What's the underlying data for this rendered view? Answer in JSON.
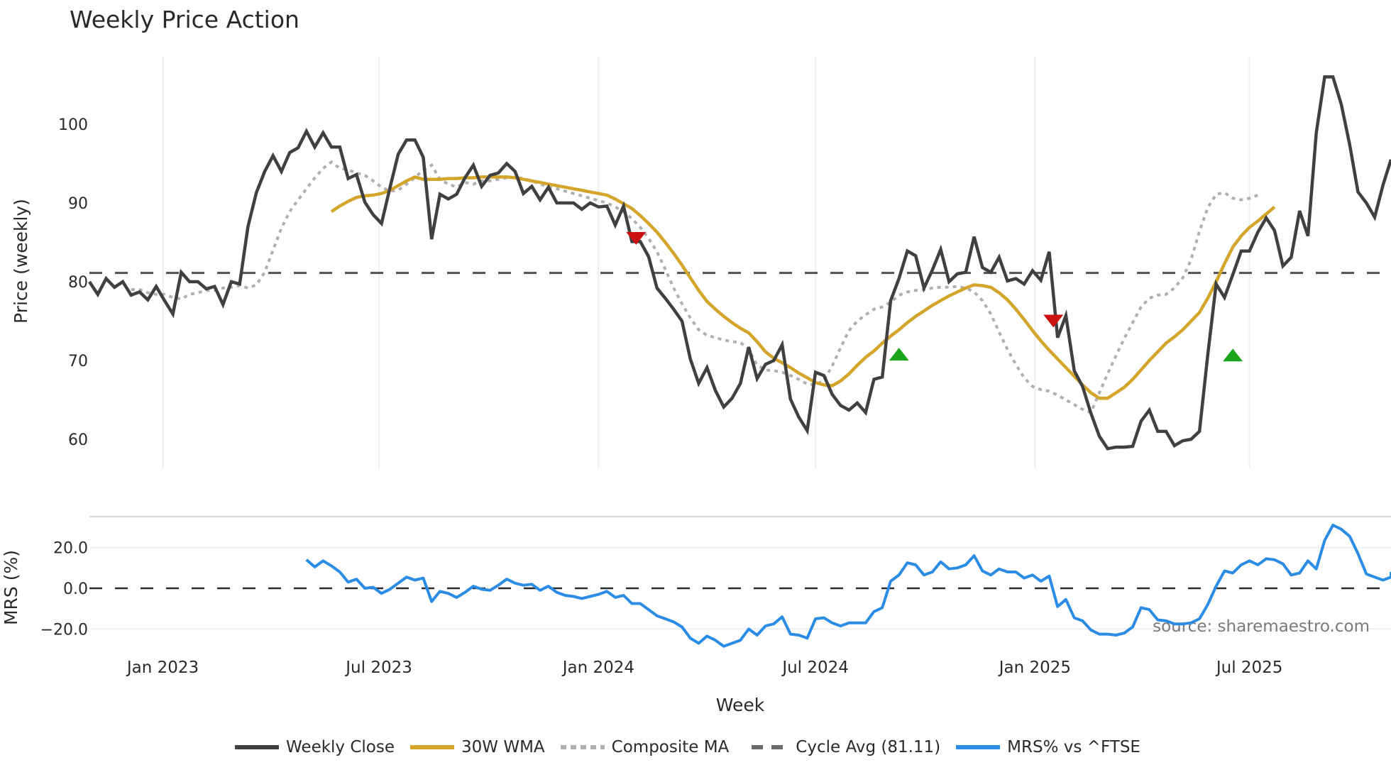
{
  "title": "Weekly Price Action",
  "colors": {
    "close": "#404040",
    "wma": "#d4a52b",
    "composite": "#b0b0b0",
    "cycle": "#505050",
    "mrs": "#2b8ce6",
    "sell": "#cc1111",
    "buy": "#1aa51a",
    "grid": "#eceff4"
  },
  "legend": [
    {
      "key": "close",
      "label": "Weekly Close",
      "style": "solid"
    },
    {
      "key": "wma",
      "label": "30W WMA",
      "style": "solid"
    },
    {
      "key": "composite",
      "label": "Composite MA",
      "style": "dotted"
    },
    {
      "key": "cycle",
      "label": "Cycle Avg (81.11)",
      "style": "dashed"
    },
    {
      "key": "mrs",
      "label": "MRS% vs ^FTSE",
      "style": "solid"
    }
  ],
  "source": "source: sharemaestro.com",
  "chart_data": [
    {
      "type": "line",
      "title": "Weekly Price Action",
      "xlabel": "Week",
      "ylabel": "Price (weekly)",
      "ylim": [
        55.5,
        110.5
      ],
      "yticks": [
        60,
        70,
        80,
        90,
        100
      ],
      "xticks": [
        "Jan 2023",
        "Jul 2023",
        "Jan 2024",
        "Jul 2024",
        "Jan 2025",
        "Jul 2025"
      ],
      "xtick_week_index": [
        8.8,
        34.7,
        61.0,
        87.0,
        113.3,
        139.0
      ],
      "cycle_avg": 81.11,
      "series": [
        {
          "name": "Weekly Close",
          "start_index": 0,
          "values": [
            80.0,
            78.4,
            80.4,
            79.3,
            80.0,
            78.3,
            78.7,
            77.7,
            79.4,
            77.6,
            75.9,
            81.2,
            80.0,
            80.0,
            79.1,
            79.4,
            77.1,
            80.0,
            79.7,
            87.0,
            91.3,
            94.0,
            96.0,
            94.0,
            96.4,
            97.0,
            99.1,
            97.1,
            98.9,
            97.1,
            97.1,
            93.1,
            93.6,
            90.1,
            88.5,
            87.4,
            91.9,
            96.2,
            98.0,
            98.0,
            95.8,
            85.4,
            91.1,
            90.5,
            91.1,
            93.2,
            94.8,
            92.1,
            93.5,
            93.8,
            95.0,
            94.0,
            91.2,
            92.1,
            90.4,
            92.0,
            90.0,
            90.0,
            90.0,
            89.2,
            90.0,
            89.5,
            89.6,
            87.2,
            89.6,
            85.1,
            85.1,
            83.2,
            79.2,
            77.9,
            76.5,
            75.0,
            70.2,
            67.1,
            69.1,
            66.2,
            64.1,
            65.2,
            67.1,
            71.7,
            67.7,
            69.5,
            70.0,
            72.0,
            65.1,
            62.8,
            61.1,
            68.5,
            68.1,
            65.7,
            64.3,
            63.7,
            64.6,
            63.4,
            67.6,
            67.9,
            77.6,
            80.4,
            83.9,
            83.3,
            79.2,
            81.5,
            84.1,
            80.0,
            81.0,
            81.2,
            85.7,
            81.8,
            81.2,
            83.1,
            80.1,
            80.4,
            79.7,
            81.4,
            80.2,
            83.8,
            72.9,
            75.7,
            68.7,
            66.7,
            63.3,
            60.4,
            58.8,
            59.0,
            59.0,
            59.1,
            62.3,
            63.7,
            61.0,
            61.0,
            59.2,
            59.8,
            60.0,
            61.0,
            70.7,
            79.7,
            78.0,
            80.9,
            83.9,
            83.9,
            86.3,
            88.1,
            86.5,
            82.0,
            83.1,
            89.0,
            85.8,
            98.9,
            106.0,
            106.0,
            102.5,
            97.4,
            91.4,
            90.0,
            88.2,
            92.3,
            95.5
          ]
        },
        {
          "name": "30W WMA",
          "start_index": 29,
          "values": [
            88.9,
            89.6,
            90.2,
            90.7,
            90.9,
            91.0,
            91.2,
            91.6,
            92.2,
            92.8,
            93.3,
            93.0,
            93.0,
            93.0,
            93.1,
            93.1,
            93.2,
            93.2,
            93.3,
            93.3,
            93.3,
            93.3,
            93.2,
            93.0,
            92.8,
            92.6,
            92.4,
            92.2,
            92.0,
            91.8,
            91.6,
            91.4,
            91.2,
            91.0,
            90.5,
            89.9,
            89.3,
            88.4,
            87.4,
            86.3,
            85.0,
            83.6,
            82.1,
            80.5,
            78.9,
            77.5,
            76.5,
            75.6,
            74.8,
            74.1,
            73.5,
            72.4,
            71.1,
            70.3,
            69.7,
            69.1,
            68.4,
            67.8,
            67.2,
            66.9,
            66.8,
            67.4,
            68.3,
            69.4,
            70.4,
            71.2,
            72.2,
            73.1,
            73.9,
            74.8,
            75.6,
            76.3,
            77.0,
            77.6,
            78.2,
            78.7,
            79.2,
            79.6,
            79.5,
            79.3,
            78.6,
            77.7,
            76.5,
            75.2,
            73.8,
            72.5,
            71.3,
            70.2,
            69.1,
            68.0,
            66.9,
            65.9,
            65.2,
            65.2,
            65.9,
            66.6,
            67.6,
            68.8,
            70.0,
            71.1,
            72.2,
            73.0,
            73.9,
            75.0,
            76.1,
            77.9,
            80.0,
            82.3,
            84.4,
            85.8,
            86.9,
            87.7,
            88.6,
            89.5
          ]
        },
        {
          "name": "Composite MA",
          "start_index": 5,
          "values": [
            79.0,
            79.0,
            78.6,
            78.4,
            78.4,
            78.0,
            77.8,
            78.4,
            78.6,
            78.9,
            78.9,
            79.2,
            79.3,
            79.5,
            79.2,
            79.6,
            81.2,
            84.0,
            86.8,
            88.9,
            90.4,
            91.8,
            93.2,
            94.4,
            95.2,
            94.4,
            94.2,
            93.8,
            93.5,
            92.8,
            92.0,
            91.5,
            91.6,
            92.4,
            93.2,
            94.2,
            94.8,
            93.0,
            92.4,
            92.0,
            92.6,
            92.4,
            92.8,
            92.8,
            93.0,
            93.2,
            93.3,
            93.1,
            92.8,
            92.4,
            92.0,
            91.8,
            91.5,
            91.2,
            90.9,
            90.6,
            90.3,
            90.0,
            89.5,
            88.9,
            88.0,
            86.9,
            85.5,
            83.8,
            81.6,
            79.2,
            77.2,
            75.4,
            73.9,
            73.2,
            72.9,
            72.6,
            72.4,
            72.3,
            71.4,
            69.4,
            68.8,
            68.7,
            68.5,
            68.1,
            67.6,
            67.0,
            66.9,
            67.5,
            69.3,
            71.6,
            73.8,
            75.0,
            75.8,
            76.5,
            76.8,
            77.4,
            78.3,
            78.7,
            78.9,
            79.0,
            79.2,
            79.3,
            79.3,
            79.4,
            79.2,
            78.7,
            77.6,
            75.9,
            73.6,
            71.4,
            69.5,
            67.8,
            66.7,
            66.3,
            66.1,
            65.6,
            65.0,
            64.4,
            63.8,
            63.4,
            65.9,
            68.3,
            70.6,
            72.8,
            74.8,
            76.8,
            77.9,
            78.3,
            78.4,
            79.2,
            80.5,
            82.8,
            86.4,
            89.4,
            91.1,
            91.3,
            90.6,
            90.4,
            90.6,
            91.0
          ]
        },
        {
          "name": "MRS% vs ^FTSE",
          "start_index": 26,
          "values": [
            14.0,
            10.5,
            13.5,
            11.0,
            8.0,
            3.0,
            4.5,
            0.0,
            0.5,
            -2.5,
            -0.5,
            2.5,
            5.5,
            4.0,
            5.0,
            -6.5,
            -1.5,
            -2.5,
            -4.5,
            -2.0,
            1.0,
            -0.5,
            -1.0,
            1.5,
            4.5,
            2.5,
            1.5,
            2.0,
            -1.0,
            1.0,
            -2.0,
            -3.5,
            -4.0,
            -5.0,
            -4.0,
            -3.0,
            -1.5,
            -4.5,
            -3.5,
            -7.5,
            -7.5,
            -10.5,
            -13.5,
            -15.0,
            -16.5,
            -19.0,
            -24.5,
            -27.0,
            -23.5,
            -25.5,
            -28.5,
            -27.0,
            -25.5,
            -20.0,
            -23.0,
            -18.5,
            -17.5,
            -14.0,
            -22.5,
            -23.0,
            -24.5,
            -15.0,
            -14.5,
            -17.0,
            -18.5,
            -17.0,
            -17.0,
            -17.0,
            -11.5,
            -9.5,
            3.5,
            6.5,
            12.5,
            11.5,
            6.5,
            8.0,
            13.0,
            9.5,
            10.0,
            11.5,
            16.0,
            8.5,
            6.5,
            9.5,
            8.0,
            8.0,
            5.0,
            6.5,
            3.5,
            6.0,
            -9.0,
            -5.5,
            -14.5,
            -16.0,
            -20.5,
            -22.5,
            -22.5,
            -23.0,
            -22.0,
            -19.0,
            -9.5,
            -10.5,
            -15.5,
            -16.0,
            -17.5,
            -17.5,
            -17.0,
            -15.0,
            -8.0,
            1.0,
            8.5,
            7.5,
            11.5,
            13.5,
            11.5,
            14.5,
            14.0,
            12.0,
            6.5,
            7.5,
            13.5,
            9.5,
            23.5,
            31.0,
            29.0,
            25.5,
            17.0,
            7.0,
            5.5,
            4.0,
            5.5,
            8.0
          ]
        }
      ],
      "signals": [
        {
          "type": "sell",
          "week_index": 65.5,
          "value": 85.5
        },
        {
          "type": "buy",
          "week_index": 97.0,
          "value": 70.8
        },
        {
          "type": "sell",
          "week_index": 115.5,
          "value": 75.0
        },
        {
          "type": "buy",
          "week_index": 137.0,
          "value": 70.7
        }
      ]
    },
    {
      "type": "line",
      "title": "",
      "xlabel": "Week",
      "ylabel": "MRS (%)",
      "ylim": [
        -32.5,
        40.5
      ],
      "yticks": [
        "20.0",
        "0.0",
        "−20.0"
      ],
      "ytick_values": [
        20,
        0,
        -20
      ],
      "zero_line": 0,
      "series_ref": "MRS% vs ^FTSE"
    }
  ],
  "axes": {
    "price_ylabel": "Price (weekly)",
    "mrs_ylabel": "MRS (%)",
    "xlabel": "Week"
  }
}
